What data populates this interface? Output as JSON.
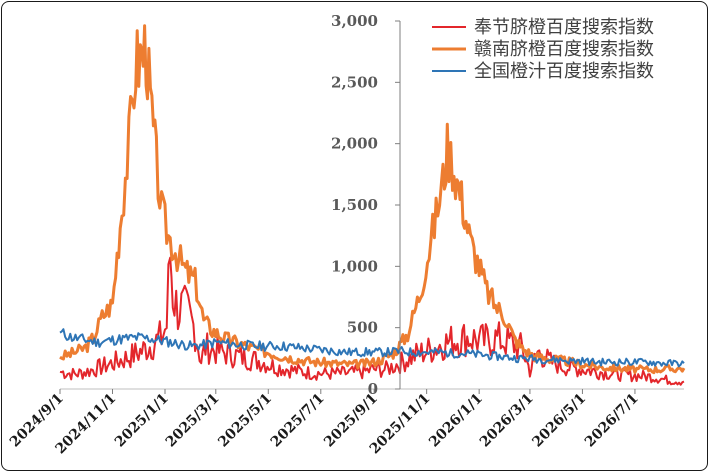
{
  "chart_data": {
    "type": "line",
    "title": "",
    "xlabel": "",
    "ylabel": "",
    "ylim": [
      0,
      3000
    ],
    "yticks": [
      0,
      500,
      1000,
      1500,
      2000,
      2500,
      3000
    ],
    "ytick_labels": [
      "0",
      "500",
      "1,000",
      "1,500",
      "2,000",
      "2,500",
      "3,000"
    ],
    "xlim": [
      "2024-09-01",
      "2026-08-27"
    ],
    "xticks": [
      "2024-09-01",
      "2024-11-01",
      "2025-01-01",
      "2025-03-01",
      "2025-05-01",
      "2025-07-01",
      "2025-09-01",
      "2025-11-01",
      "2026-01-01",
      "2026-03-01",
      "2026-05-01",
      "2026-07-01"
    ],
    "xtick_labels": [
      "2024/9/1",
      "2024/11/1",
      "2025/1/1",
      "2025/3/1",
      "2025/5/1",
      "2025/7/1",
      "2025/9/1",
      "2025/11/1",
      "2026/1/1",
      "2026/3/1",
      "2026/5/1",
      "2026/7/1"
    ],
    "grid": false,
    "legend_position": "top-right",
    "series": [
      {
        "name": "奉节脐橙百度搜索指数",
        "color": "#e3262b",
        "points": [
          [
            "2024-09-01",
            140
          ],
          [
            "2024-09-10",
            130
          ],
          [
            "2024-09-18",
            120
          ],
          [
            "2024-10-01",
            140
          ],
          [
            "2024-10-15",
            170
          ],
          [
            "2024-11-01",
            210
          ],
          [
            "2024-11-20",
            260
          ],
          [
            "2024-12-05",
            310
          ],
          [
            "2024-12-20",
            380
          ],
          [
            "2024-12-28",
            420
          ],
          [
            "2025-01-03",
            520
          ],
          [
            "2025-01-07",
            1110
          ],
          [
            "2025-01-10",
            800
          ],
          [
            "2025-01-14",
            680
          ],
          [
            "2025-01-20",
            650
          ],
          [
            "2025-01-28",
            600
          ],
          [
            "2025-02-05",
            480
          ],
          [
            "2025-02-12",
            230
          ],
          [
            "2025-02-17",
            340
          ],
          [
            "2025-03-01",
            310
          ],
          [
            "2025-03-15",
            290
          ],
          [
            "2025-04-01",
            260
          ],
          [
            "2025-04-20",
            230
          ],
          [
            "2025-05-10",
            180
          ],
          [
            "2025-06-01",
            150
          ],
          [
            "2025-06-20",
            130
          ],
          [
            "2025-07-10",
            125
          ],
          [
            "2025-08-01",
            130
          ],
          [
            "2025-08-20",
            140
          ],
          [
            "2025-09-01",
            160
          ],
          [
            "2025-09-15",
            160
          ],
          [
            "2025-10-01",
            210
          ],
          [
            "2025-10-20",
            280
          ],
          [
            "2025-11-05",
            320
          ],
          [
            "2025-11-20",
            370
          ],
          [
            "2025-12-05",
            400
          ],
          [
            "2025-12-20",
            420
          ],
          [
            "2026-01-05",
            390
          ],
          [
            "2026-01-20",
            410
          ],
          [
            "2026-02-05",
            380
          ],
          [
            "2026-02-20",
            330
          ],
          [
            "2026-03-01",
            150
          ],
          [
            "2026-03-10",
            300
          ],
          [
            "2026-03-25",
            220
          ],
          [
            "2026-04-10",
            180
          ],
          [
            "2026-05-01",
            160
          ],
          [
            "2026-05-20",
            140
          ],
          [
            "2026-06-10",
            120
          ],
          [
            "2026-07-01",
            110
          ],
          [
            "2026-07-20",
            100
          ],
          [
            "2026-08-10",
            70
          ],
          [
            "2026-08-27",
            60
          ]
        ]
      },
      {
        "name": "赣南脐橙百度搜索指数",
        "color": "#ed7d31",
        "points": [
          [
            "2024-09-01",
            260
          ],
          [
            "2024-09-15",
            290
          ],
          [
            "2024-10-01",
            340
          ],
          [
            "2024-10-10",
            420
          ],
          [
            "2024-10-20",
            590
          ],
          [
            "2024-11-01",
            700
          ],
          [
            "2024-11-10",
            1350
          ],
          [
            "2024-11-20",
            2000
          ],
          [
            "2024-11-28",
            2650
          ],
          [
            "2024-12-05",
            2720
          ],
          [
            "2024-12-10",
            2800
          ],
          [
            "2024-12-15",
            2350
          ],
          [
            "2024-12-22",
            1850
          ],
          [
            "2024-12-28",
            1450
          ],
          [
            "2025-01-05",
            1250
          ],
          [
            "2025-01-15",
            1100
          ],
          [
            "2025-01-25",
            960
          ],
          [
            "2025-02-05",
            880
          ],
          [
            "2025-02-15",
            560
          ],
          [
            "2025-02-25",
            480
          ],
          [
            "2025-03-10",
            420
          ],
          [
            "2025-03-25",
            380
          ],
          [
            "2025-04-10",
            340
          ],
          [
            "2025-04-25",
            310
          ],
          [
            "2025-05-15",
            270
          ],
          [
            "2025-06-05",
            240
          ],
          [
            "2025-06-25",
            220
          ],
          [
            "2025-07-15",
            210
          ],
          [
            "2025-08-05",
            200
          ],
          [
            "2025-08-25",
            210
          ],
          [
            "2025-09-10",
            240
          ],
          [
            "2025-09-25",
            300
          ],
          [
            "2025-10-10",
            450
          ],
          [
            "2025-10-25",
            800
          ],
          [
            "2025-11-10",
            1350
          ],
          [
            "2025-11-20",
            1700
          ],
          [
            "2025-11-25",
            1960
          ],
          [
            "2025-12-01",
            1850
          ],
          [
            "2025-12-08",
            1650
          ],
          [
            "2025-12-15",
            1450
          ],
          [
            "2025-12-22",
            1200
          ],
          [
            "2026-01-01",
            1000
          ],
          [
            "2026-01-10",
            800
          ],
          [
            "2026-01-20",
            680
          ],
          [
            "2026-02-01",
            580
          ],
          [
            "2026-02-10",
            420
          ],
          [
            "2026-02-20",
            330
          ],
          [
            "2026-03-05",
            270
          ],
          [
            "2026-03-20",
            250
          ],
          [
            "2026-04-10",
            230
          ],
          [
            "2026-05-01",
            200
          ],
          [
            "2026-05-20",
            180
          ],
          [
            "2026-06-10",
            170
          ],
          [
            "2026-07-01",
            160
          ],
          [
            "2026-07-25",
            160
          ],
          [
            "2026-08-15",
            165
          ],
          [
            "2026-08-27",
            170
          ]
        ]
      },
      {
        "name": "全国橙汁百度搜索指数",
        "color": "#2e75b6",
        "points": [
          [
            "2024-09-01",
            460
          ],
          [
            "2024-09-15",
            420
          ],
          [
            "2024-10-01",
            400
          ],
          [
            "2024-10-15",
            380
          ],
          [
            "2024-11-01",
            400
          ],
          [
            "2024-11-15",
            410
          ],
          [
            "2024-12-01",
            420
          ],
          [
            "2024-12-15",
            410
          ],
          [
            "2025-01-01",
            390
          ],
          [
            "2025-01-15",
            370
          ],
          [
            "2025-02-01",
            350
          ],
          [
            "2025-02-15",
            360
          ],
          [
            "2025-03-01",
            380
          ],
          [
            "2025-03-15",
            370
          ],
          [
            "2025-04-01",
            360
          ],
          [
            "2025-04-15",
            350
          ],
          [
            "2025-05-01",
            350
          ],
          [
            "2025-05-15",
            350
          ],
          [
            "2025-06-01",
            340
          ],
          [
            "2025-06-15",
            330
          ],
          [
            "2025-07-01",
            320
          ],
          [
            "2025-07-15",
            310
          ],
          [
            "2025-08-01",
            300
          ],
          [
            "2025-08-15",
            300
          ],
          [
            "2025-09-01",
            300
          ],
          [
            "2025-09-15",
            300
          ],
          [
            "2025-10-01",
            310
          ],
          [
            "2025-10-15",
            300
          ],
          [
            "2025-11-01",
            300
          ],
          [
            "2025-11-15",
            300
          ],
          [
            "2025-12-01",
            290
          ],
          [
            "2025-12-15",
            290
          ],
          [
            "2026-01-01",
            280
          ],
          [
            "2026-01-15",
            270
          ],
          [
            "2026-02-01",
            260
          ],
          [
            "2026-02-15",
            250
          ],
          [
            "2026-03-01",
            250
          ],
          [
            "2026-03-15",
            240
          ],
          [
            "2026-04-01",
            240
          ],
          [
            "2026-04-15",
            230
          ],
          [
            "2026-05-01",
            230
          ],
          [
            "2026-05-15",
            220
          ],
          [
            "2026-06-01",
            220
          ],
          [
            "2026-06-15",
            220
          ],
          [
            "2026-07-01",
            220
          ],
          [
            "2026-07-15",
            220
          ],
          [
            "2026-08-01",
            210
          ],
          [
            "2026-08-15",
            210
          ],
          [
            "2026-08-27",
            210
          ]
        ]
      }
    ]
  }
}
